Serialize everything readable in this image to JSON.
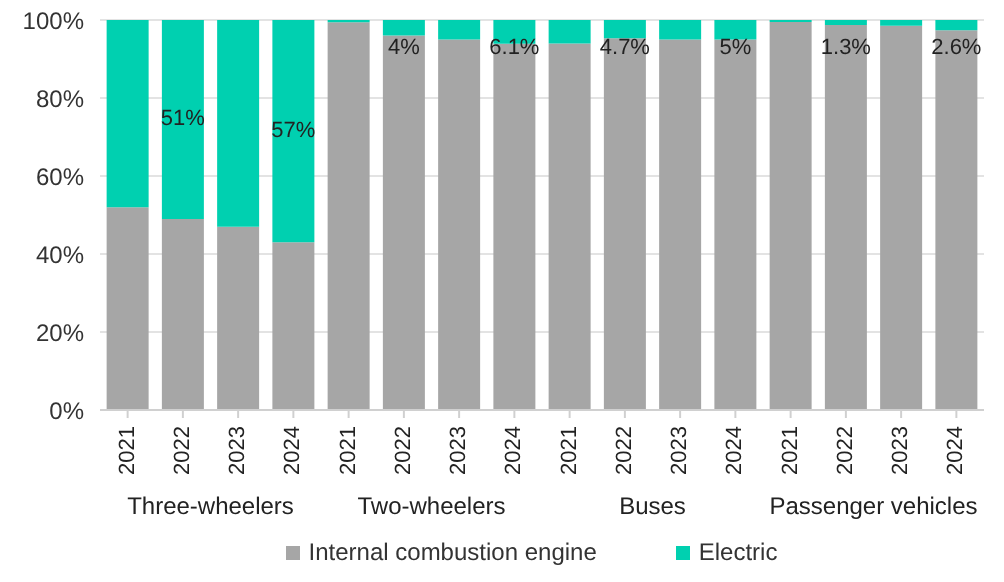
{
  "chart_data": {
    "type": "bar",
    "stacked": true,
    "categories": [
      "2021",
      "2022",
      "2023",
      "2024",
      "2021",
      "2022",
      "2023",
      "2024",
      "2021",
      "2022",
      "2023",
      "2024",
      "2021",
      "2022",
      "2023",
      "2024"
    ],
    "series": [
      {
        "name": "Internal combustion engine",
        "color": "#a6a6a6",
        "values": [
          52,
          49,
          47,
          43,
          99.4,
          96,
          95,
          93.9,
          94,
          95.3,
          95,
          95,
          99.5,
          98.7,
          98.5,
          97.4
        ]
      },
      {
        "name": "Electric",
        "color": "#00d0b0",
        "values": [
          48,
          51,
          53,
          57,
          0.6,
          4,
          5,
          6.1,
          6,
          4.7,
          5,
          5,
          0.5,
          1.3,
          1.5,
          2.6
        ],
        "value_labels": [
          null,
          "51%",
          null,
          "57%",
          null,
          "4%",
          null,
          "6.1%",
          null,
          "4.7%",
          null,
          "5%",
          null,
          "1.3%",
          null,
          "2.6%"
        ]
      }
    ],
    "annotations": [
      "Three-wheelers",
      "Two-wheelers",
      "Buses",
      "Passenger vehicles"
    ],
    "ylim": [
      0,
      100
    ],
    "yticks": [
      {
        "value": 0,
        "label": "0%"
      },
      {
        "value": 20,
        "label": "20%"
      },
      {
        "value": 40,
        "label": "40%"
      },
      {
        "value": 60,
        "label": "60%"
      },
      {
        "value": 80,
        "label": "80%"
      },
      {
        "value": 100,
        "label": "100%"
      }
    ],
    "grid": "y",
    "legend": "bottom"
  }
}
